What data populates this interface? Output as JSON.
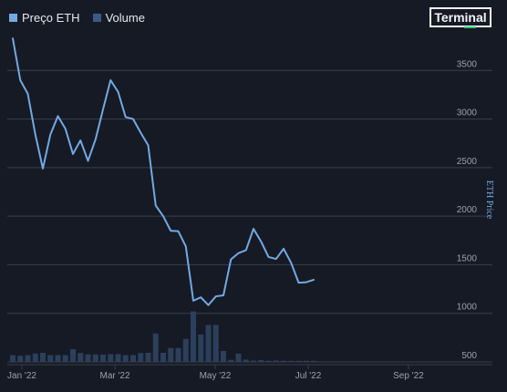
{
  "brand": {
    "name": "Terminal"
  },
  "colors": {
    "background": "#161a25",
    "line": "#72a9e3",
    "volume": "#2c3f5c",
    "grid": "#3a3f4b",
    "text": "#9aa0ad"
  },
  "legend": {
    "price_label": "Preço ETH",
    "volume_label": "Volume"
  },
  "chart_data": {
    "type": "line",
    "ylabel": "ETH Price",
    "ylim": [
      500,
      3850
    ],
    "y_ticks": [
      "500",
      "1000",
      "1500",
      "2000",
      "2500",
      "3000",
      "3500"
    ],
    "x_ticks": [
      "Jan '22",
      "Mar '22",
      "May '22",
      "Jul '22",
      "Sep '22"
    ],
    "grid": true,
    "legend_position": "top-left",
    "series": [
      {
        "name": "Preço ETH",
        "values": [
          3830,
          3400,
          3260,
          2840,
          2490,
          2840,
          3030,
          2900,
          2640,
          2780,
          2570,
          2790,
          3100,
          3400,
          3280,
          3020,
          3000,
          2860,
          2730,
          2110,
          2000,
          1850,
          1845,
          1690,
          1130,
          1165,
          1085,
          1175,
          1185,
          1555,
          1620,
          1650,
          1870,
          1740,
          1580,
          1560,
          1665,
          1520,
          1315,
          1320,
          1345
        ]
      },
      {
        "name": "Volume",
        "values": [
          30,
          27,
          30,
          37,
          40,
          30,
          30,
          30,
          56,
          39,
          33,
          33,
          32,
          34,
          34,
          30,
          30,
          39,
          40,
          125,
          40,
          61,
          61,
          101,
          222,
          120,
          162,
          162,
          48,
          9,
          36,
          10,
          6,
          8,
          5,
          6,
          5,
          5,
          5,
          5,
          5
        ]
      }
    ]
  }
}
